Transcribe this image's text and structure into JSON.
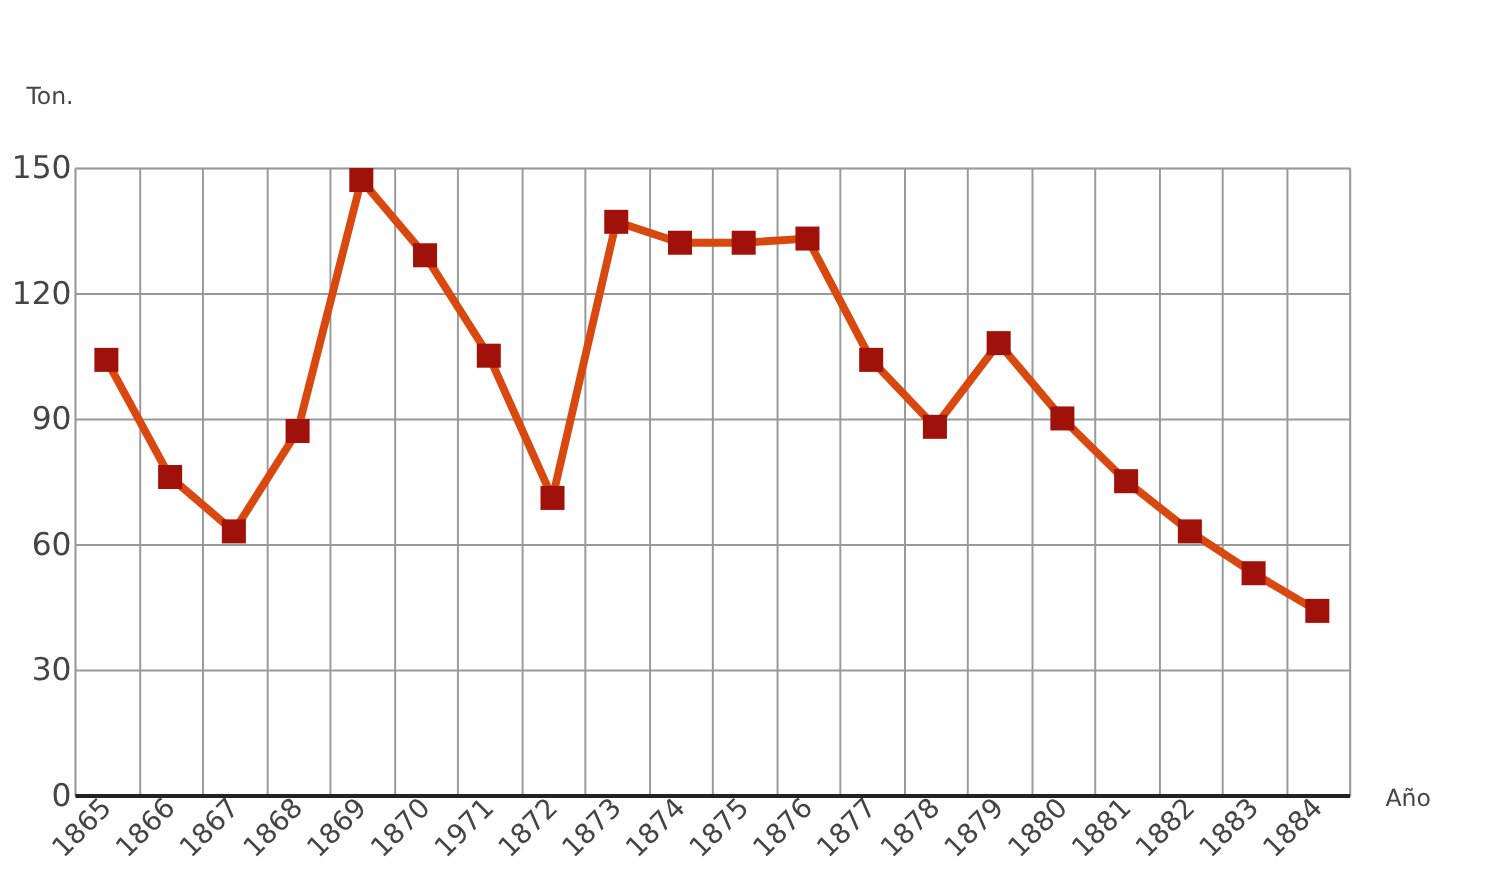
{
  "chart_data": {
    "type": "line",
    "xlabel": "Año",
    "ylabel": "Ton.",
    "categories": [
      "1865",
      "1866",
      "1867",
      "1868",
      "1869",
      "1870",
      "1971",
      "1872",
      "1873",
      "1874",
      "1875",
      "1876",
      "1877",
      "1878",
      "1879",
      "1880",
      "1881",
      "1882",
      "1883",
      "1884"
    ],
    "series": [
      {
        "color": "#d9480f",
        "values": [
          104,
          76,
          63,
          87,
          147,
          129,
          105,
          71,
          137,
          132,
          132,
          133,
          104,
          88,
          108,
          90,
          75,
          63,
          53,
          44
        ]
      }
    ],
    "ylim": [
      0,
      150
    ],
    "yticks": [
      0,
      30,
      60,
      90,
      120,
      150
    ],
    "grid": true,
    "marker": "square",
    "line_style": "solid"
  }
}
